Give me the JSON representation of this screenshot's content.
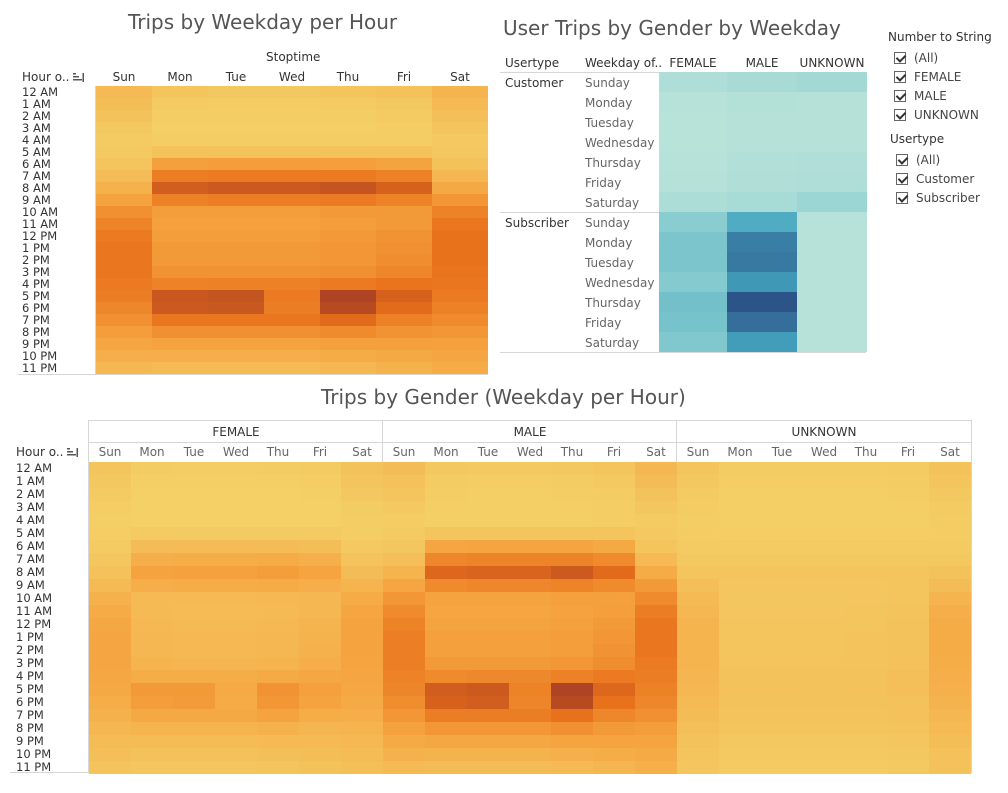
{
  "chart_data": [
    {
      "type": "heatmap",
      "title": "Trips by Weekday per Hour",
      "column_group": "Stoptime",
      "row_header": "Hour o..",
      "columns": [
        "Sun",
        "Mon",
        "Tue",
        "Wed",
        "Thu",
        "Fri",
        "Sat"
      ],
      "rows": [
        "12 AM",
        "1 AM",
        "2 AM",
        "3 AM",
        "4 AM",
        "5 AM",
        "6 AM",
        "7 AM",
        "8 AM",
        "9 AM",
        "10 AM",
        "11 AM",
        "12 PM",
        "1 PM",
        "2 PM",
        "3 PM",
        "4 PM",
        "5 PM",
        "6 PM",
        "7 PM",
        "8 PM",
        "9 PM",
        "10 PM",
        "11 PM"
      ],
      "values": [
        [
          0.18,
          0.1,
          0.08,
          0.08,
          0.1,
          0.12,
          0.22
        ],
        [
          0.15,
          0.06,
          0.05,
          0.05,
          0.06,
          0.08,
          0.18
        ],
        [
          0.12,
          0.04,
          0.04,
          0.04,
          0.04,
          0.06,
          0.14
        ],
        [
          0.08,
          0.03,
          0.03,
          0.03,
          0.03,
          0.04,
          0.1
        ],
        [
          0.06,
          0.04,
          0.04,
          0.04,
          0.04,
          0.04,
          0.07
        ],
        [
          0.07,
          0.12,
          0.12,
          0.12,
          0.12,
          0.12,
          0.08
        ],
        [
          0.1,
          0.36,
          0.38,
          0.38,
          0.37,
          0.34,
          0.12
        ],
        [
          0.16,
          0.58,
          0.6,
          0.6,
          0.6,
          0.56,
          0.2
        ],
        [
          0.24,
          0.78,
          0.8,
          0.8,
          0.84,
          0.76,
          0.3
        ],
        [
          0.34,
          0.56,
          0.58,
          0.58,
          0.6,
          0.55,
          0.42
        ],
        [
          0.46,
          0.38,
          0.38,
          0.38,
          0.4,
          0.4,
          0.55
        ],
        [
          0.54,
          0.36,
          0.36,
          0.36,
          0.38,
          0.4,
          0.62
        ],
        [
          0.6,
          0.38,
          0.38,
          0.38,
          0.4,
          0.44,
          0.66
        ],
        [
          0.62,
          0.4,
          0.4,
          0.4,
          0.42,
          0.46,
          0.66
        ],
        [
          0.62,
          0.4,
          0.4,
          0.4,
          0.42,
          0.48,
          0.66
        ],
        [
          0.62,
          0.44,
          0.44,
          0.44,
          0.46,
          0.52,
          0.64
        ],
        [
          0.6,
          0.55,
          0.56,
          0.56,
          0.6,
          0.64,
          0.62
        ],
        [
          0.58,
          0.82,
          0.84,
          0.6,
          0.94,
          0.76,
          0.6
        ],
        [
          0.52,
          0.8,
          0.82,
          0.58,
          0.9,
          0.7,
          0.56
        ],
        [
          0.46,
          0.62,
          0.62,
          0.62,
          0.7,
          0.56,
          0.5
        ],
        [
          0.38,
          0.46,
          0.46,
          0.46,
          0.5,
          0.44,
          0.42
        ],
        [
          0.32,
          0.34,
          0.34,
          0.34,
          0.36,
          0.36,
          0.36
        ],
        [
          0.26,
          0.26,
          0.26,
          0.26,
          0.28,
          0.3,
          0.32
        ],
        [
          0.2,
          0.18,
          0.18,
          0.18,
          0.2,
          0.24,
          0.28
        ]
      ],
      "color_scale": [
        "#f4d36a",
        "#f5a440",
        "#e8701a",
        "#a33a26"
      ]
    },
    {
      "type": "heatmap",
      "title": "User Trips by Gender by Weekday",
      "row_headers": [
        "Usertype",
        "Weekday of.."
      ],
      "columns": [
        "FEMALE",
        "MALE",
        "UNKNOWN"
      ],
      "groups": [
        {
          "name": "Customer",
          "rows": [
            "Sunday",
            "Monday",
            "Tuesday",
            "Wednesday",
            "Thursday",
            "Friday",
            "Saturday"
          ],
          "values": [
            [
              0.12,
              0.16,
              0.2
            ],
            [
              0.06,
              0.08,
              0.07
            ],
            [
              0.05,
              0.07,
              0.07
            ],
            [
              0.05,
              0.07,
              0.07
            ],
            [
              0.06,
              0.09,
              0.1
            ],
            [
              0.07,
              0.1,
              0.12
            ],
            [
              0.13,
              0.17,
              0.24
            ]
          ]
        },
        {
          "name": "Subscriber",
          "rows": [
            "Sunday",
            "Monday",
            "Tuesday",
            "Wednesday",
            "Thursday",
            "Friday",
            "Saturday"
          ],
          "values": [
            [
              0.36,
              0.62,
              0.06
            ],
            [
              0.42,
              0.82,
              0.06
            ],
            [
              0.42,
              0.84,
              0.06
            ],
            [
              0.38,
              0.72,
              0.06
            ],
            [
              0.46,
              0.98,
              0.06
            ],
            [
              0.44,
              0.88,
              0.06
            ],
            [
              0.4,
              0.7,
              0.06
            ]
          ]
        }
      ],
      "color_scale": [
        "#bfe6da",
        "#8fd0d2",
        "#44a6c0",
        "#2c4f86"
      ]
    },
    {
      "type": "heatmap",
      "title": "Trips by Gender (Weekday per Hour)",
      "row_header": "Hour o..",
      "panels": [
        "FEMALE",
        "MALE",
        "UNKNOWN"
      ],
      "columns": [
        "Sun",
        "Mon",
        "Tue",
        "Wed",
        "Thu",
        "Fri",
        "Sat"
      ],
      "rows": [
        "12 AM",
        "1 AM",
        "2 AM",
        "3 AM",
        "4 AM",
        "5 AM",
        "6 AM",
        "7 AM",
        "8 AM",
        "9 AM",
        "10 AM",
        "11 AM",
        "12 PM",
        "1 PM",
        "2 PM",
        "3 PM",
        "4 PM",
        "5 PM",
        "6 PM",
        "7 PM",
        "8 PM",
        "9 PM",
        "10 PM",
        "11 PM"
      ],
      "values": {
        "FEMALE": [
          [
            0.1,
            0.05,
            0.04,
            0.04,
            0.05,
            0.06,
            0.12
          ],
          [
            0.08,
            0.03,
            0.03,
            0.03,
            0.03,
            0.04,
            0.1
          ],
          [
            0.06,
            0.02,
            0.02,
            0.02,
            0.02,
            0.03,
            0.08
          ],
          [
            0.04,
            0.02,
            0.02,
            0.02,
            0.02,
            0.02,
            0.05
          ],
          [
            0.03,
            0.02,
            0.02,
            0.02,
            0.02,
            0.02,
            0.04
          ],
          [
            0.04,
            0.06,
            0.06,
            0.06,
            0.06,
            0.06,
            0.04
          ],
          [
            0.06,
            0.16,
            0.17,
            0.17,
            0.17,
            0.15,
            0.07
          ],
          [
            0.09,
            0.26,
            0.27,
            0.27,
            0.28,
            0.25,
            0.11
          ],
          [
            0.13,
            0.34,
            0.35,
            0.35,
            0.38,
            0.33,
            0.16
          ],
          [
            0.18,
            0.26,
            0.27,
            0.27,
            0.28,
            0.26,
            0.22
          ],
          [
            0.24,
            0.18,
            0.18,
            0.18,
            0.19,
            0.2,
            0.28
          ],
          [
            0.28,
            0.18,
            0.17,
            0.17,
            0.18,
            0.2,
            0.32
          ],
          [
            0.31,
            0.19,
            0.18,
            0.18,
            0.19,
            0.22,
            0.34
          ],
          [
            0.32,
            0.2,
            0.19,
            0.19,
            0.2,
            0.23,
            0.34
          ],
          [
            0.32,
            0.2,
            0.19,
            0.19,
            0.2,
            0.24,
            0.34
          ],
          [
            0.32,
            0.22,
            0.21,
            0.21,
            0.22,
            0.26,
            0.33
          ],
          [
            0.31,
            0.27,
            0.27,
            0.27,
            0.29,
            0.31,
            0.32
          ],
          [
            0.3,
            0.4,
            0.4,
            0.29,
            0.44,
            0.36,
            0.31
          ],
          [
            0.27,
            0.38,
            0.39,
            0.28,
            0.42,
            0.34,
            0.29
          ],
          [
            0.24,
            0.3,
            0.3,
            0.3,
            0.34,
            0.27,
            0.26
          ],
          [
            0.2,
            0.22,
            0.22,
            0.22,
            0.24,
            0.21,
            0.22
          ],
          [
            0.17,
            0.17,
            0.17,
            0.17,
            0.18,
            0.18,
            0.19
          ],
          [
            0.14,
            0.13,
            0.13,
            0.13,
            0.14,
            0.15,
            0.17
          ],
          [
            0.11,
            0.09,
            0.09,
            0.09,
            0.1,
            0.12,
            0.14
          ]
        ],
        "MALE": [
          [
            0.16,
            0.08,
            0.07,
            0.07,
            0.08,
            0.1,
            0.2
          ],
          [
            0.13,
            0.05,
            0.04,
            0.04,
            0.05,
            0.07,
            0.16
          ],
          [
            0.1,
            0.04,
            0.03,
            0.03,
            0.04,
            0.05,
            0.12
          ],
          [
            0.07,
            0.03,
            0.03,
            0.03,
            0.03,
            0.04,
            0.09
          ],
          [
            0.05,
            0.03,
            0.03,
            0.03,
            0.03,
            0.04,
            0.06
          ],
          [
            0.06,
            0.1,
            0.1,
            0.1,
            0.1,
            0.1,
            0.07
          ],
          [
            0.09,
            0.32,
            0.33,
            0.33,
            0.33,
            0.3,
            0.1
          ],
          [
            0.14,
            0.52,
            0.54,
            0.54,
            0.54,
            0.5,
            0.18
          ],
          [
            0.22,
            0.72,
            0.74,
            0.74,
            0.8,
            0.7,
            0.28
          ],
          [
            0.32,
            0.5,
            0.52,
            0.52,
            0.54,
            0.5,
            0.4
          ],
          [
            0.42,
            0.34,
            0.34,
            0.34,
            0.36,
            0.36,
            0.5
          ],
          [
            0.5,
            0.32,
            0.32,
            0.32,
            0.34,
            0.37,
            0.58
          ],
          [
            0.55,
            0.34,
            0.34,
            0.34,
            0.36,
            0.4,
            0.62
          ],
          [
            0.57,
            0.36,
            0.36,
            0.36,
            0.38,
            0.42,
            0.62
          ],
          [
            0.57,
            0.36,
            0.36,
            0.36,
            0.38,
            0.44,
            0.62
          ],
          [
            0.57,
            0.4,
            0.4,
            0.4,
            0.42,
            0.48,
            0.6
          ],
          [
            0.55,
            0.5,
            0.51,
            0.51,
            0.56,
            0.6,
            0.58
          ],
          [
            0.53,
            0.78,
            0.8,
            0.55,
            0.94,
            0.72,
            0.56
          ],
          [
            0.48,
            0.76,
            0.78,
            0.53,
            0.9,
            0.66,
            0.52
          ],
          [
            0.42,
            0.58,
            0.58,
            0.58,
            0.66,
            0.52,
            0.46
          ],
          [
            0.35,
            0.42,
            0.42,
            0.42,
            0.46,
            0.4,
            0.38
          ],
          [
            0.29,
            0.31,
            0.31,
            0.31,
            0.33,
            0.33,
            0.33
          ],
          [
            0.24,
            0.23,
            0.23,
            0.23,
            0.25,
            0.27,
            0.29
          ],
          [
            0.18,
            0.16,
            0.16,
            0.16,
            0.18,
            0.21,
            0.25
          ]
        ],
        "UNKNOWN": [
          [
            0.1,
            0.05,
            0.05,
            0.05,
            0.05,
            0.06,
            0.12
          ],
          [
            0.08,
            0.04,
            0.04,
            0.04,
            0.04,
            0.05,
            0.1
          ],
          [
            0.06,
            0.03,
            0.03,
            0.03,
            0.03,
            0.04,
            0.08
          ],
          [
            0.05,
            0.03,
            0.03,
            0.03,
            0.03,
            0.03,
            0.06
          ],
          [
            0.04,
            0.03,
            0.03,
            0.03,
            0.03,
            0.03,
            0.05
          ],
          [
            0.05,
            0.04,
            0.04,
            0.04,
            0.04,
            0.04,
            0.05
          ],
          [
            0.06,
            0.06,
            0.06,
            0.06,
            0.06,
            0.06,
            0.06
          ],
          [
            0.08,
            0.08,
            0.08,
            0.08,
            0.08,
            0.08,
            0.08
          ],
          [
            0.1,
            0.1,
            0.1,
            0.1,
            0.1,
            0.1,
            0.12
          ],
          [
            0.14,
            0.09,
            0.09,
            0.09,
            0.09,
            0.1,
            0.16
          ],
          [
            0.18,
            0.09,
            0.09,
            0.09,
            0.09,
            0.1,
            0.22
          ],
          [
            0.2,
            0.09,
            0.09,
            0.09,
            0.1,
            0.11,
            0.26
          ],
          [
            0.22,
            0.1,
            0.1,
            0.1,
            0.1,
            0.12,
            0.28
          ],
          [
            0.22,
            0.1,
            0.1,
            0.1,
            0.11,
            0.12,
            0.28
          ],
          [
            0.22,
            0.1,
            0.1,
            0.1,
            0.11,
            0.12,
            0.28
          ],
          [
            0.22,
            0.11,
            0.11,
            0.11,
            0.11,
            0.13,
            0.27
          ],
          [
            0.21,
            0.12,
            0.12,
            0.12,
            0.12,
            0.14,
            0.26
          ],
          [
            0.2,
            0.13,
            0.13,
            0.12,
            0.13,
            0.14,
            0.25
          ],
          [
            0.18,
            0.12,
            0.12,
            0.12,
            0.12,
            0.13,
            0.23
          ],
          [
            0.16,
            0.11,
            0.11,
            0.11,
            0.11,
            0.12,
            0.2
          ],
          [
            0.14,
            0.1,
            0.1,
            0.1,
            0.1,
            0.11,
            0.18
          ],
          [
            0.12,
            0.08,
            0.08,
            0.08,
            0.08,
            0.09,
            0.15
          ],
          [
            0.1,
            0.07,
            0.07,
            0.07,
            0.07,
            0.08,
            0.13
          ],
          [
            0.09,
            0.06,
            0.06,
            0.06,
            0.06,
            0.07,
            0.12
          ]
        ]
      },
      "color_scale": [
        "#f4d36a",
        "#f5a440",
        "#e8701a",
        "#a33a26"
      ]
    }
  ],
  "filters": [
    {
      "title": "Number to String",
      "items": [
        {
          "label": "(All)",
          "checked": true
        },
        {
          "label": "FEMALE",
          "checked": true
        },
        {
          "label": "MALE",
          "checked": true
        },
        {
          "label": "UNKNOWN",
          "checked": true
        }
      ]
    },
    {
      "title": "Usertype",
      "items": [
        {
          "label": "(All)",
          "checked": true
        },
        {
          "label": "Customer",
          "checked": true
        },
        {
          "label": "Subscriber",
          "checked": true
        }
      ]
    }
  ],
  "icons": {
    "sort": "sort-descending-icon",
    "checkbox": "checkbox-checked-icon"
  }
}
